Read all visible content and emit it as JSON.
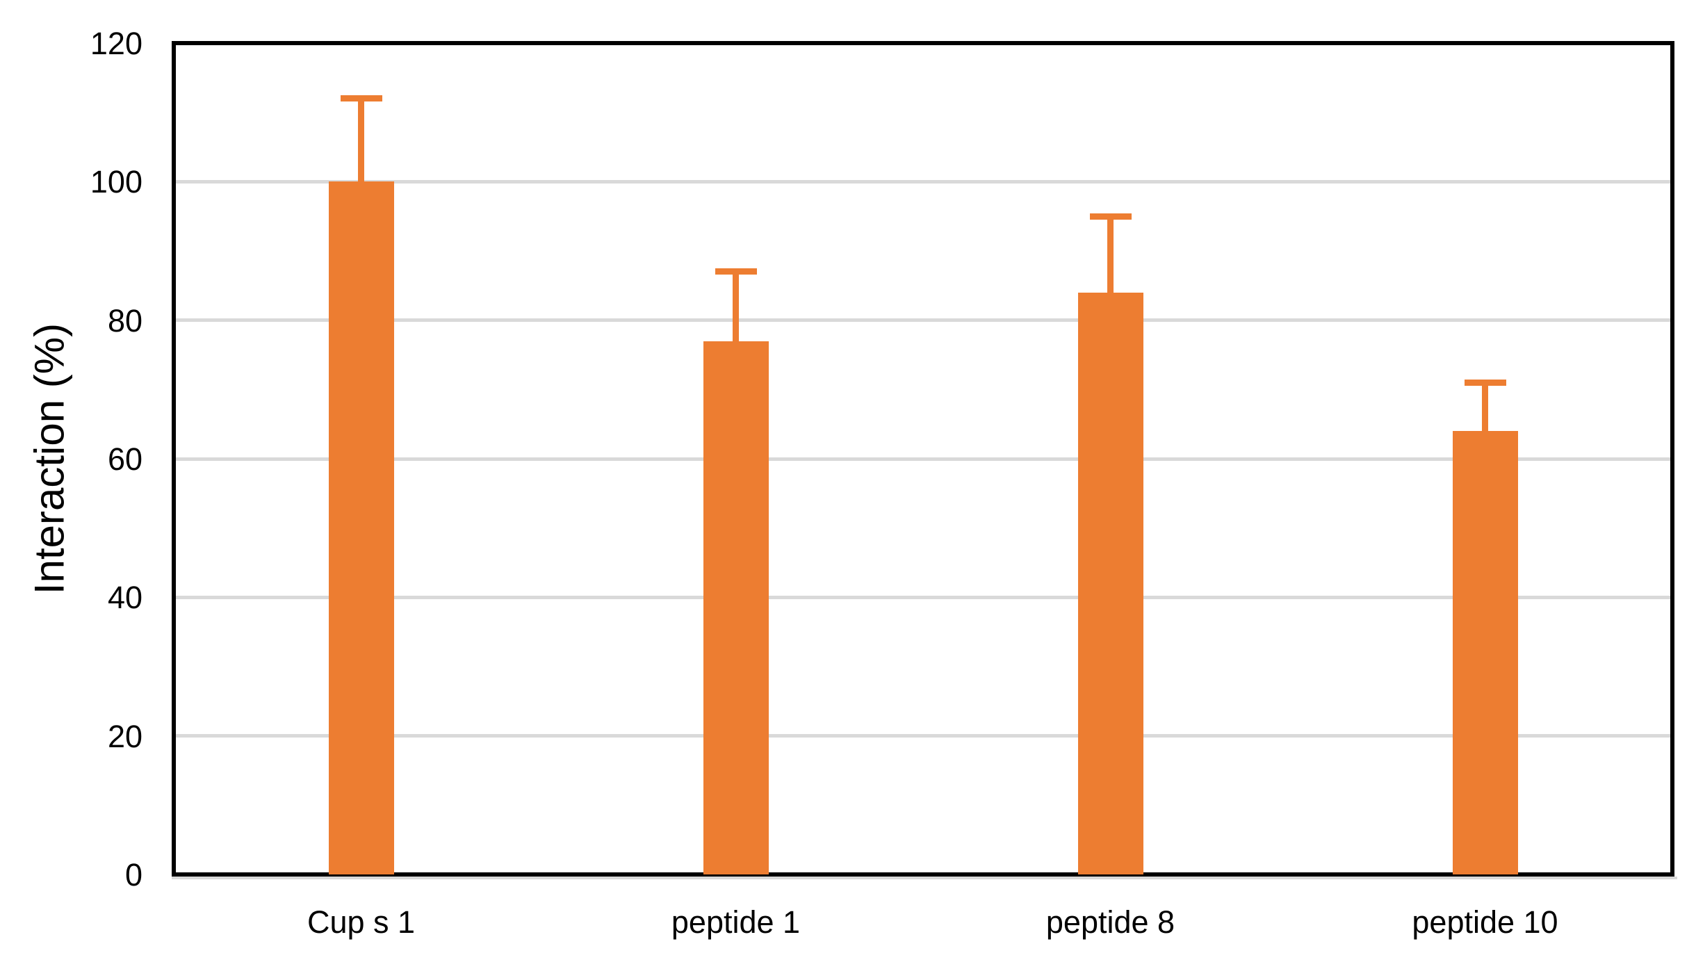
{
  "chart_data": {
    "type": "bar",
    "title": "",
    "xlabel": "",
    "ylabel": "Interaction (%)",
    "categories": [
      "Cup s 1",
      "peptide 1",
      "peptide 8",
      "peptide 10"
    ],
    "values": [
      100,
      77,
      84,
      64
    ],
    "error_plus": [
      12,
      10,
      11,
      7
    ],
    "ylim": [
      0,
      120
    ],
    "yticks": [
      0,
      20,
      40,
      60,
      80,
      100,
      120
    ],
    "grid": true,
    "legend": false,
    "bar_color": "#ED7D31",
    "error_bar_color": "#ED7D31",
    "gridline_color": "#D9D9D9",
    "axis_color": "#000000",
    "axis_shadow_color": "#D9D9D9",
    "background_color": "#FFFFFF",
    "text_color": "#000000"
  }
}
